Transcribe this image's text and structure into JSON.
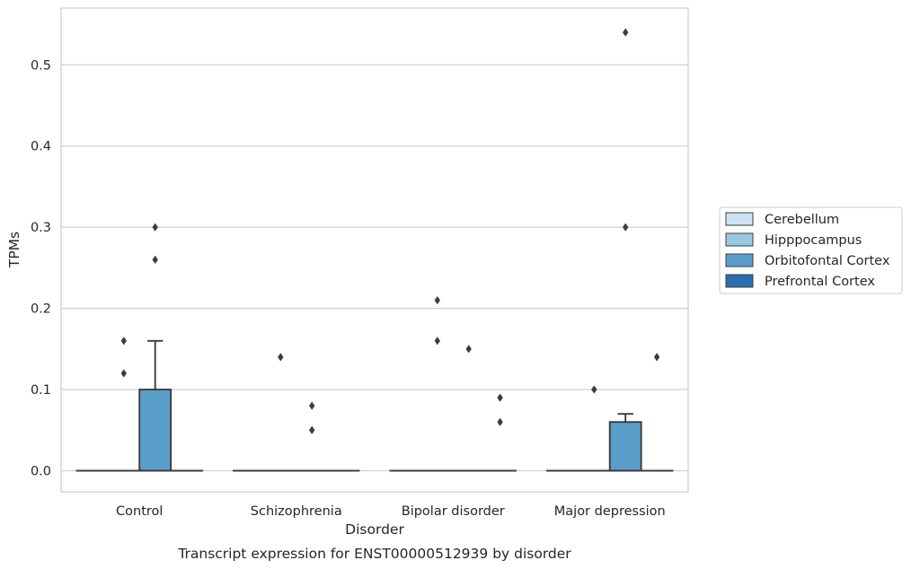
{
  "chart_data": {
    "type": "box",
    "title": "",
    "caption": "Transcript expression for ENST00000512939 by disorder",
    "xlabel": "Disorder",
    "ylabel": "TPMs",
    "categories": [
      "Control",
      "Schizophrenia",
      "Bipolar disorder",
      "Major depression"
    ],
    "ylim": [
      -0.026,
      0.57
    ],
    "yticks": [
      "0.0",
      "0.1",
      "0.2",
      "0.3",
      "0.4",
      "0.5"
    ],
    "grid": "horizontal",
    "legend_position": "right",
    "colors": {
      "Cerebellum": "#d0e2f2",
      "Hipppocampus": "#9ac8e0",
      "Orbitofontal Cortex": "#5a9fc9",
      "Prefrontal Cortex": "#2a6eb0",
      "outline": "#3c3c3c",
      "grid": "#d0d0d0"
    },
    "series": [
      {
        "name": "Cerebellum",
        "boxes": [
          {
            "category": "Control",
            "q1": 0,
            "median": 0,
            "q3": 0,
            "whisker_low": 0,
            "whisker_high": 0,
            "outliers": []
          },
          {
            "category": "Schizophrenia",
            "q1": 0,
            "median": 0,
            "q3": 0,
            "whisker_low": 0,
            "whisker_high": 0,
            "outliers": []
          },
          {
            "category": "Bipolar disorder",
            "q1": 0,
            "median": 0,
            "q3": 0,
            "whisker_low": 0,
            "whisker_high": 0,
            "outliers": []
          },
          {
            "category": "Major depression",
            "q1": 0,
            "median": 0,
            "q3": 0,
            "whisker_low": 0,
            "whisker_high": 0,
            "outliers": []
          }
        ]
      },
      {
        "name": "Hipppocampus",
        "boxes": [
          {
            "category": "Control",
            "q1": 0,
            "median": 0,
            "q3": 0,
            "whisker_low": 0,
            "whisker_high": 0,
            "outliers": [
              0.12,
              0.16
            ]
          },
          {
            "category": "Schizophrenia",
            "q1": 0,
            "median": 0,
            "q3": 0,
            "whisker_low": 0,
            "whisker_high": 0,
            "outliers": [
              0.14
            ]
          },
          {
            "category": "Bipolar disorder",
            "q1": 0,
            "median": 0,
            "q3": 0,
            "whisker_low": 0,
            "whisker_high": 0,
            "outliers": [
              0.21,
              0.16
            ]
          },
          {
            "category": "Major depression",
            "q1": 0,
            "median": 0,
            "q3": 0,
            "whisker_low": 0,
            "whisker_high": 0,
            "outliers": [
              0.1
            ]
          }
        ]
      },
      {
        "name": "Orbitofontal Cortex",
        "boxes": [
          {
            "category": "Control",
            "q1": 0,
            "median": 0,
            "q3": 0.1,
            "whisker_low": 0,
            "whisker_high": 0.16,
            "outliers": [
              0.3,
              0.26
            ]
          },
          {
            "category": "Schizophrenia",
            "q1": 0,
            "median": 0,
            "q3": 0,
            "whisker_low": 0,
            "whisker_high": 0,
            "outliers": [
              0.08,
              0.05
            ]
          },
          {
            "category": "Bipolar disorder",
            "q1": 0,
            "median": 0,
            "q3": 0,
            "whisker_low": 0,
            "whisker_high": 0,
            "outliers": [
              0.15
            ]
          },
          {
            "category": "Major depression",
            "q1": 0,
            "median": 0,
            "q3": 0.06,
            "whisker_low": 0,
            "whisker_high": 0.07,
            "outliers": [
              0.54,
              0.3
            ]
          }
        ]
      },
      {
        "name": "Prefrontal Cortex",
        "boxes": [
          {
            "category": "Control",
            "q1": 0,
            "median": 0,
            "q3": 0,
            "whisker_low": 0,
            "whisker_high": 0,
            "outliers": []
          },
          {
            "category": "Schizophrenia",
            "q1": 0,
            "median": 0,
            "q3": 0,
            "whisker_low": 0,
            "whisker_high": 0,
            "outliers": []
          },
          {
            "category": "Bipolar disorder",
            "q1": 0,
            "median": 0,
            "q3": 0,
            "whisker_low": 0,
            "whisker_high": 0,
            "outliers": [
              0.09,
              0.06
            ]
          },
          {
            "category": "Major depression",
            "q1": 0,
            "median": 0,
            "q3": 0,
            "whisker_low": 0,
            "whisker_high": 0,
            "outliers": [
              0.14
            ]
          }
        ]
      }
    ],
    "legend": [
      "Cerebellum",
      "Hipppocampus",
      "Orbitofontal Cortex",
      "Prefrontal Cortex"
    ]
  }
}
